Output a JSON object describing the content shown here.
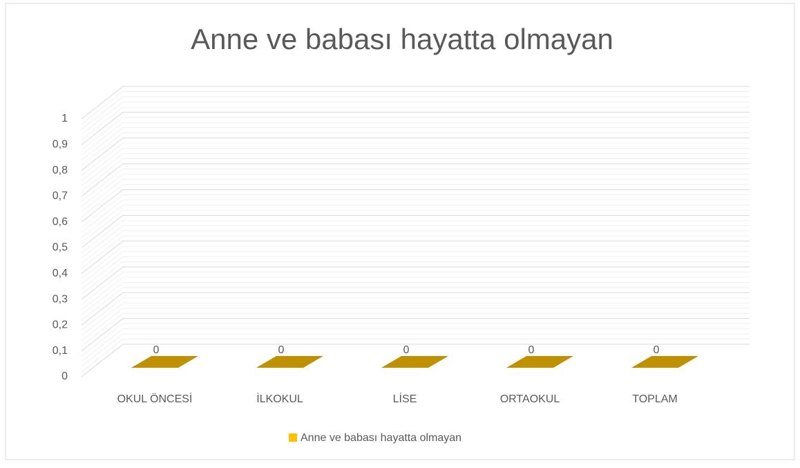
{
  "chart_data": {
    "type": "bar3d",
    "title": "Anne ve babası hayatta olmayan",
    "categories": [
      "OKUL ÖNCESİ",
      "İLKOKUL",
      "LİSE",
      "ORTAOKUL",
      "TOPLAM"
    ],
    "series": [
      {
        "name": "Anne ve babası hayatta olmayan",
        "color": "#ffc000",
        "values": [
          0,
          0,
          0,
          0,
          0
        ]
      }
    ],
    "ylim": [
      0,
      1
    ],
    "yticks": [
      0,
      {
        "value": 0.1,
        "label": "0,1"
      },
      {
        "value": 0.2,
        "label": "0,2"
      },
      {
        "value": 0.3,
        "label": "0,3"
      },
      {
        "value": 0.4,
        "label": "0,4"
      },
      {
        "value": 0.5,
        "label": "0,5"
      },
      {
        "value": 0.6,
        "label": "0,6"
      },
      {
        "value": 0.7,
        "label": "0,7"
      },
      {
        "value": 0.8,
        "label": "0,8"
      },
      {
        "value": 0.9,
        "label": "0,9"
      },
      1
    ],
    "grid": true,
    "legend": "bottom"
  }
}
